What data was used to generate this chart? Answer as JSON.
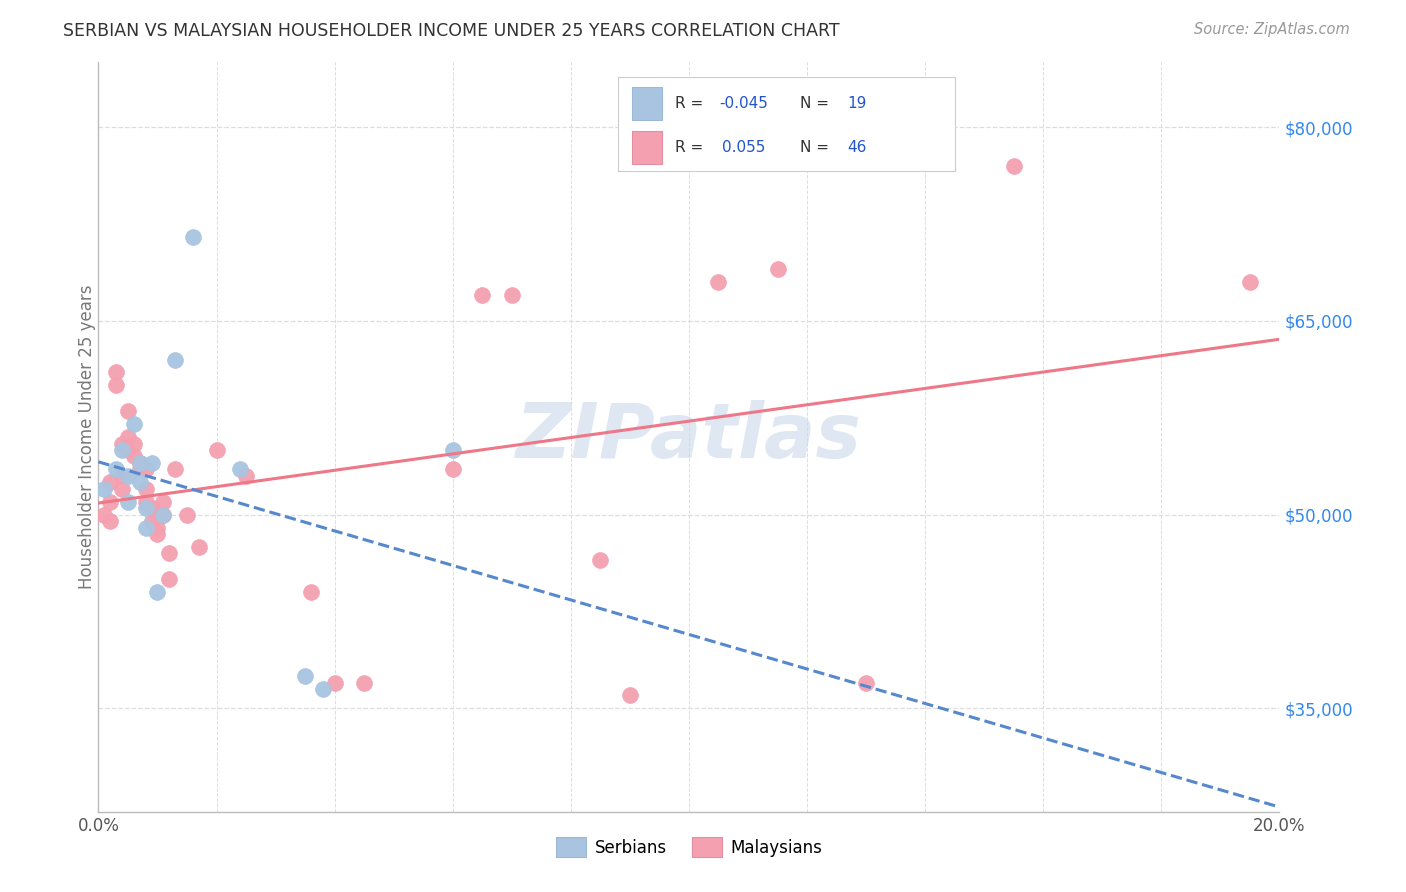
{
  "title": "SERBIAN VS MALAYSIAN HOUSEHOLDER INCOME UNDER 25 YEARS CORRELATION CHART",
  "source": "Source: ZipAtlas.com",
  "ylabel": "Householder Income Under 25 years",
  "xlim": [
    0.0,
    0.2
  ],
  "ylim": [
    27000,
    85000
  ],
  "xticks": [
    0.0,
    0.02,
    0.04,
    0.06,
    0.08,
    0.1,
    0.12,
    0.14,
    0.16,
    0.18,
    0.2
  ],
  "ytick_labels_right": [
    "$80,000",
    "$65,000",
    "$50,000",
    "$35,000"
  ],
  "ytick_values_right": [
    80000,
    65000,
    50000,
    35000
  ],
  "serbian_color": "#a8c4e0",
  "malaysian_color": "#f4a0b0",
  "serbian_line_color": "#5588cc",
  "malaysian_line_color": "#ee7788",
  "serbian_x": [
    0.001,
    0.003,
    0.004,
    0.005,
    0.005,
    0.006,
    0.007,
    0.007,
    0.008,
    0.008,
    0.009,
    0.01,
    0.011,
    0.013,
    0.016,
    0.024,
    0.035,
    0.038,
    0.06
  ],
  "serbian_y": [
    52000,
    53500,
    55000,
    53000,
    51000,
    57000,
    54000,
    52500,
    50500,
    49000,
    54000,
    44000,
    50000,
    62000,
    71500,
    53500,
    37500,
    36500,
    55000
  ],
  "malaysian_x": [
    0.001,
    0.002,
    0.002,
    0.002,
    0.003,
    0.003,
    0.004,
    0.004,
    0.004,
    0.005,
    0.005,
    0.005,
    0.006,
    0.006,
    0.007,
    0.007,
    0.008,
    0.008,
    0.008,
    0.009,
    0.009,
    0.01,
    0.01,
    0.01,
    0.011,
    0.011,
    0.012,
    0.012,
    0.013,
    0.015,
    0.017,
    0.02,
    0.025,
    0.036,
    0.04,
    0.045,
    0.06,
    0.065,
    0.07,
    0.085,
    0.09,
    0.105,
    0.115,
    0.13,
    0.155,
    0.195
  ],
  "malaysian_y": [
    50000,
    51000,
    52500,
    49500,
    61000,
    60000,
    55500,
    53000,
    52000,
    58000,
    56000,
    55000,
    55500,
    54500,
    54000,
    53500,
    53500,
    52000,
    51000,
    50500,
    49500,
    50000,
    49000,
    48500,
    50000,
    51000,
    47000,
    45000,
    53500,
    50000,
    47500,
    55000,
    53000,
    44000,
    37000,
    37000,
    53500,
    67000,
    67000,
    46500,
    36000,
    68000,
    69000,
    37000,
    77000,
    68000
  ],
  "background_color": "#ffffff",
  "grid_color": "#dddddd",
  "title_color": "#333333",
  "axis_label_color": "#777777",
  "right_tick_color": "#3388ee",
  "watermark_text": "ZIPatlas",
  "watermark_color": "#c8d8ea",
  "legend_R_color": "#2255cc",
  "legend_label_serbian": "Serbians",
  "legend_label_malaysian": "Malaysians"
}
